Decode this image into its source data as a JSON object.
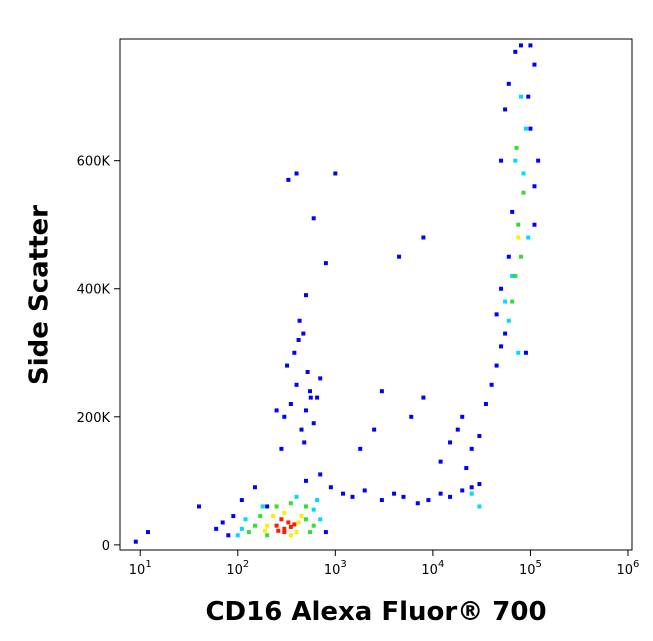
{
  "chart_data": {
    "type": "scatter",
    "x_label": "CD16 Alexa Fluor® 700",
    "y_label": "Side Scatter",
    "xscale": "log",
    "xlim": [
      6.2,
      1100000
    ],
    "xticks": [
      {
        "value": 10,
        "label": "10",
        "exponent": "1"
      },
      {
        "value": 100,
        "label": "10",
        "exponent": "2"
      },
      {
        "value": 1000,
        "label": "10",
        "exponent": "3"
      },
      {
        "value": 10000,
        "label": "10",
        "exponent": "4"
      },
      {
        "value": 100000,
        "label": "10",
        "exponent": "5"
      },
      {
        "value": 1000000,
        "label": "10",
        "exponent": "6"
      }
    ],
    "ylim": [
      -8000,
      790000
    ],
    "yticks": [
      {
        "value": 0,
        "label": "0"
      },
      {
        "value": 200000,
        "label": "200K"
      },
      {
        "value": 400000,
        "label": "400K"
      },
      {
        "value": 600000,
        "label": "600K"
      }
    ],
    "series": [
      {
        "color": "#0000ff",
        "x": [
          9,
          12,
          40,
          60,
          80,
          90,
          70,
          110,
          500,
          700,
          800,
          900,
          1200,
          1500,
          2000,
          3000,
          4000,
          5000,
          7000,
          9000,
          12000,
          15000,
          20000,
          25000,
          30000,
          1800,
          2500,
          6000,
          8000,
          300,
          350,
          400,
          450,
          500,
          550,
          600,
          320,
          380,
          420,
          480,
          520,
          560,
          250,
          650,
          700,
          280,
          470,
          430,
          12000,
          15000,
          18000,
          20000,
          22000,
          25000,
          30000,
          35000,
          40000,
          45000,
          50000,
          55000,
          45000,
          50000,
          60000,
          65000,
          110000,
          120000,
          100000,
          95000,
          110000,
          50000,
          55000,
          60000,
          70000,
          80000,
          100000,
          110000,
          90000,
          400,
          600,
          800,
          1000,
          330,
          3000,
          4500,
          8000,
          500,
          200,
          150
        ],
        "y": [
          5000,
          20000,
          60000,
          25000,
          15000,
          45000,
          35000,
          70000,
          100000,
          110000,
          20000,
          90000,
          80000,
          75000,
          85000,
          70000,
          80000,
          75000,
          65000,
          70000,
          80000,
          75000,
          85000,
          90000,
          95000,
          150000,
          180000,
          200000,
          230000,
          200000,
          220000,
          250000,
          180000,
          210000,
          240000,
          190000,
          280000,
          300000,
          320000,
          160000,
          270000,
          230000,
          210000,
          230000,
          260000,
          150000,
          330000,
          350000,
          130000,
          160000,
          180000,
          200000,
          120000,
          150000,
          170000,
          220000,
          250000,
          280000,
          310000,
          330000,
          360000,
          400000,
          450000,
          520000,
          560000,
          600000,
          650000,
          700000,
          750000,
          600000,
          680000,
          720000,
          770000,
          780000,
          780000,
          500000,
          300000,
          580000,
          510000,
          440000,
          580000,
          570000,
          240000,
          450000,
          480000,
          390000,
          60000,
          90000
        ]
      },
      {
        "color": "#00d8ff",
        "x": [
          110,
          120,
          600,
          650,
          400,
          700,
          180,
          100,
          75000,
          70000,
          90000,
          60000,
          95000,
          80000,
          30000,
          25000,
          85000,
          65000,
          55000
        ],
        "y": [
          25000,
          40000,
          55000,
          70000,
          75000,
          40000,
          60000,
          15000,
          300000,
          600000,
          650000,
          350000,
          480000,
          700000,
          60000,
          80000,
          580000,
          420000,
          380000
        ]
      },
      {
        "color": "#33dd33",
        "x": [
          150,
          170,
          500,
          500,
          350,
          250,
          130,
          600,
          200,
          550,
          80000,
          75000,
          70000,
          85000,
          65000,
          72000
        ],
        "y": [
          30000,
          45000,
          40000,
          60000,
          65000,
          60000,
          20000,
          30000,
          15000,
          20000,
          450000,
          500000,
          420000,
          550000,
          380000,
          620000
        ]
      },
      {
        "color": "#ffee00",
        "x": [
          200,
          420,
          230,
          300,
          400,
          190,
          450,
          350,
          75000
        ],
        "y": [
          30000,
          35000,
          45000,
          50000,
          20000,
          22000,
          45000,
          15000,
          480000
        ]
      },
      {
        "color": "#ff1a00",
        "x": [
          250,
          300,
          330,
          280,
          350,
          300,
          260,
          380
        ],
        "y": [
          30000,
          25000,
          35000,
          40000,
          28000,
          20000,
          22000,
          32000
        ]
      }
    ]
  }
}
